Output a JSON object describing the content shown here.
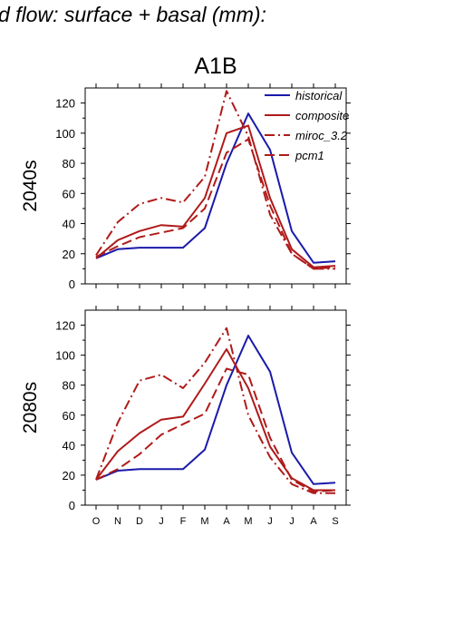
{
  "figure": {
    "suptitle": "d flow: surface + basal (mm):",
    "column_title": "A1B"
  },
  "chart_data": [
    {
      "type": "line",
      "panel": "2040s",
      "ylabel": "2040s",
      "categories": [
        "O",
        "N",
        "D",
        "J",
        "F",
        "M",
        "A",
        "M",
        "J",
        "J",
        "A",
        "S"
      ],
      "ylim": [
        0,
        130
      ],
      "yticks": [
        0,
        20,
        40,
        60,
        80,
        100,
        120
      ],
      "legend": "top-right",
      "series": [
        {
          "name": "historical",
          "color": "#1a1aaa",
          "dash": "solid",
          "values": [
            17,
            23,
            24,
            24,
            24,
            37,
            80,
            113,
            89,
            35,
            14,
            15
          ]
        },
        {
          "name": "composite",
          "color": "#b01a1a",
          "dash": "solid",
          "values": [
            17,
            29,
            35,
            39,
            38,
            57,
            100,
            105,
            57,
            23,
            11,
            12
          ]
        },
        {
          "name": "miroc_3.2",
          "color": "#b01a1a",
          "dash": "dashdot",
          "values": [
            19,
            41,
            53,
            57,
            54,
            71,
            128,
            98,
            46,
            20,
            10,
            10
          ]
        },
        {
          "name": "pcm1",
          "color": "#b01a1a",
          "dash": "dash",
          "values": [
            18,
            25,
            31,
            34,
            37,
            50,
            87,
            96,
            52,
            20,
            10,
            11
          ]
        }
      ]
    },
    {
      "type": "line",
      "panel": "2080s",
      "ylabel": "2080s",
      "categories": [
        "O",
        "N",
        "D",
        "J",
        "F",
        "M",
        "A",
        "M",
        "J",
        "J",
        "A",
        "S"
      ],
      "ylim": [
        0,
        130
      ],
      "yticks": [
        0,
        20,
        40,
        60,
        80,
        100,
        120
      ],
      "series": [
        {
          "name": "historical",
          "color": "#1a1aaa",
          "dash": "solid",
          "values": [
            17,
            23,
            24,
            24,
            24,
            37,
            80,
            113,
            89,
            35,
            14,
            15
          ]
        },
        {
          "name": "composite",
          "color": "#b01a1a",
          "dash": "solid",
          "values": [
            17,
            36,
            48,
            57,
            59,
            81,
            104,
            78,
            39,
            18,
            10,
            10
          ]
        },
        {
          "name": "miroc_3.2",
          "color": "#b01a1a",
          "dash": "dashdot",
          "values": [
            17,
            55,
            83,
            87,
            78,
            95,
            118,
            60,
            32,
            14,
            8,
            8
          ]
        },
        {
          "name": "pcm1",
          "color": "#b01a1a",
          "dash": "dash",
          "values": [
            17,
            24,
            34,
            47,
            54,
            61,
            91,
            87,
            45,
            17,
            9,
            10
          ]
        }
      ]
    }
  ]
}
